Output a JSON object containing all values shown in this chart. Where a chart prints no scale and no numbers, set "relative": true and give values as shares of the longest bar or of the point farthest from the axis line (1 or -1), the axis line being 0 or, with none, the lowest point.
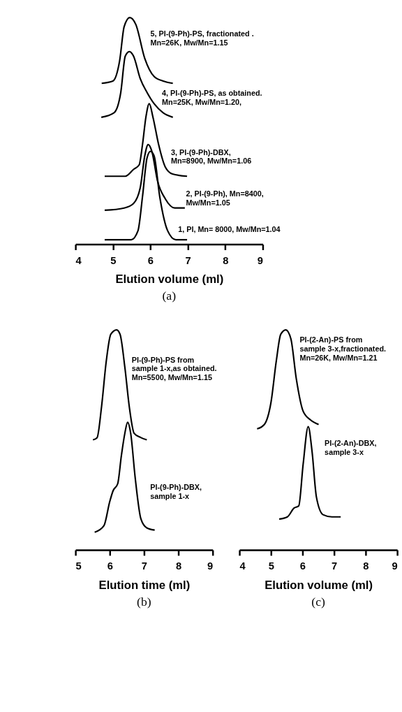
{
  "chart_data": [
    {
      "type": "line",
      "title": "(a)",
      "xlabel": "Elution volume (ml)",
      "relative": true,
      "xlim": [
        4,
        9
      ],
      "xticks": [
        4,
        5,
        6,
        7,
        8,
        9
      ],
      "grid": false,
      "legend": false,
      "series": [
        {
          "name": "5, PI-(9-Ph)-PS, fractionated .\nMn=26K, Mw/Mn=1.15",
          "color": "#000000",
          "x": [
            4.7,
            5.0,
            5.18,
            5.3,
            5.45,
            5.61,
            5.85,
            6.1,
            6.34,
            6.6
          ],
          "values": [
            0.71,
            0.72,
            0.81,
            0.96,
            1.0,
            0.97,
            0.82,
            0.74,
            0.72,
            0.71
          ]
        },
        {
          "name": "4, PI-(9-Ph)-PS, as obtained.\nMn=25K, Mw/Mn=1.20,",
          "color": "#000000",
          "x": [
            4.69,
            5.03,
            5.21,
            5.33,
            5.44,
            5.55,
            5.73,
            5.91,
            6.1,
            6.34,
            6.6
          ],
          "values": [
            0.56,
            0.58,
            0.67,
            0.83,
            0.85,
            0.83,
            0.73,
            0.67,
            0.62,
            0.58,
            0.56
          ]
        },
        {
          "name": "3, PI-(9-Ph)-DBX,\nMn=8900, Mw/Mn=1.06",
          "color": "#000000",
          "x": [
            4.78,
            5.33,
            5.55,
            5.7,
            5.79,
            5.88,
            5.97,
            6.07,
            6.22,
            6.4,
            6.59,
            6.98
          ],
          "values": [
            0.3,
            0.3,
            0.33,
            0.35,
            0.44,
            0.56,
            0.62,
            0.56,
            0.44,
            0.34,
            0.31,
            0.3
          ]
        },
        {
          "name": "2, PI-(9-Ph), Mn=8400,\nMw/Mn=1.05",
          "color": "#000000",
          "x": [
            4.78,
            5.3,
            5.55,
            5.73,
            5.85,
            5.94,
            6.04,
            6.19,
            6.4,
            6.65,
            6.92
          ],
          "values": [
            0.15,
            0.16,
            0.18,
            0.25,
            0.39,
            0.44,
            0.41,
            0.28,
            0.2,
            0.16,
            0.16
          ]
        },
        {
          "name": "1, PI, Mn= 8000, Mw/Mn=1.04",
          "color": "#000000",
          "x": [
            4.78,
            5.49,
            5.67,
            5.79,
            5.91,
            6.0,
            6.1,
            6.25,
            6.46,
            6.68,
            6.98
          ],
          "values": [
            0.02,
            0.02,
            0.06,
            0.21,
            0.38,
            0.41,
            0.39,
            0.21,
            0.06,
            0.02,
            0.02
          ]
        }
      ]
    },
    {
      "type": "line",
      "title": "(b)",
      "xlabel": "Elution time (ml)",
      "relative": true,
      "xlim": [
        5,
        9
      ],
      "xticks": [
        5,
        6,
        7,
        8,
        9
      ],
      "grid": false,
      "legend": false,
      "series": [
        {
          "name": "PI-(9-Ph)-PS from\nsample 1-x,as obtained.\nMn=5500, Mw/Mn=1.15",
          "color": "#000000",
          "x": [
            5.51,
            5.63,
            5.76,
            5.9,
            6.03,
            6.2,
            6.3,
            6.44,
            6.57,
            6.71,
            6.91,
            7.08
          ],
          "values": [
            0.5,
            0.51,
            0.65,
            0.86,
            0.98,
            1.0,
            0.98,
            0.83,
            0.65,
            0.53,
            0.51,
            0.5
          ]
        },
        {
          "name": "PI-(9-Ph)-DBX,\nsample 1-x",
          "color": "#000000",
          "x": [
            5.56,
            5.83,
            6.0,
            6.1,
            6.23,
            6.34,
            6.44,
            6.52,
            6.61,
            6.74,
            6.91,
            7.08,
            7.31
          ],
          "values": [
            0.08,
            0.11,
            0.22,
            0.27,
            0.3,
            0.43,
            0.53,
            0.58,
            0.53,
            0.33,
            0.14,
            0.1,
            0.09
          ]
        }
      ]
    },
    {
      "type": "line",
      "title": "(c)",
      "xlabel": "Elution volume (ml)",
      "relative": true,
      "xlim": [
        4,
        9
      ],
      "xticks": [
        4,
        5,
        6,
        7,
        8,
        9
      ],
      "grid": false,
      "legend": false,
      "series": [
        {
          "name": "PI-(2-An)-PS from\nsample 3-x,fractionated.\nMn=26K, Mw/Mn=1.21",
          "color": "#000000",
          "x": [
            4.56,
            4.79,
            5.0,
            5.17,
            5.31,
            5.47,
            5.63,
            5.8,
            6.02,
            6.26,
            6.51
          ],
          "values": [
            0.55,
            0.57,
            0.67,
            0.86,
            0.98,
            1.0,
            0.96,
            0.78,
            0.63,
            0.59,
            0.57
          ]
        },
        {
          "name": "PI-(2-An)-DBX,\nsample 3-x",
          "color": "#000000",
          "x": [
            5.26,
            5.52,
            5.73,
            5.88,
            6.02,
            6.18,
            6.3,
            6.44,
            6.65,
            6.93,
            7.21
          ],
          "values": [
            0.14,
            0.15,
            0.19,
            0.2,
            0.39,
            0.56,
            0.45,
            0.24,
            0.16,
            0.15,
            0.15
          ]
        }
      ]
    }
  ]
}
